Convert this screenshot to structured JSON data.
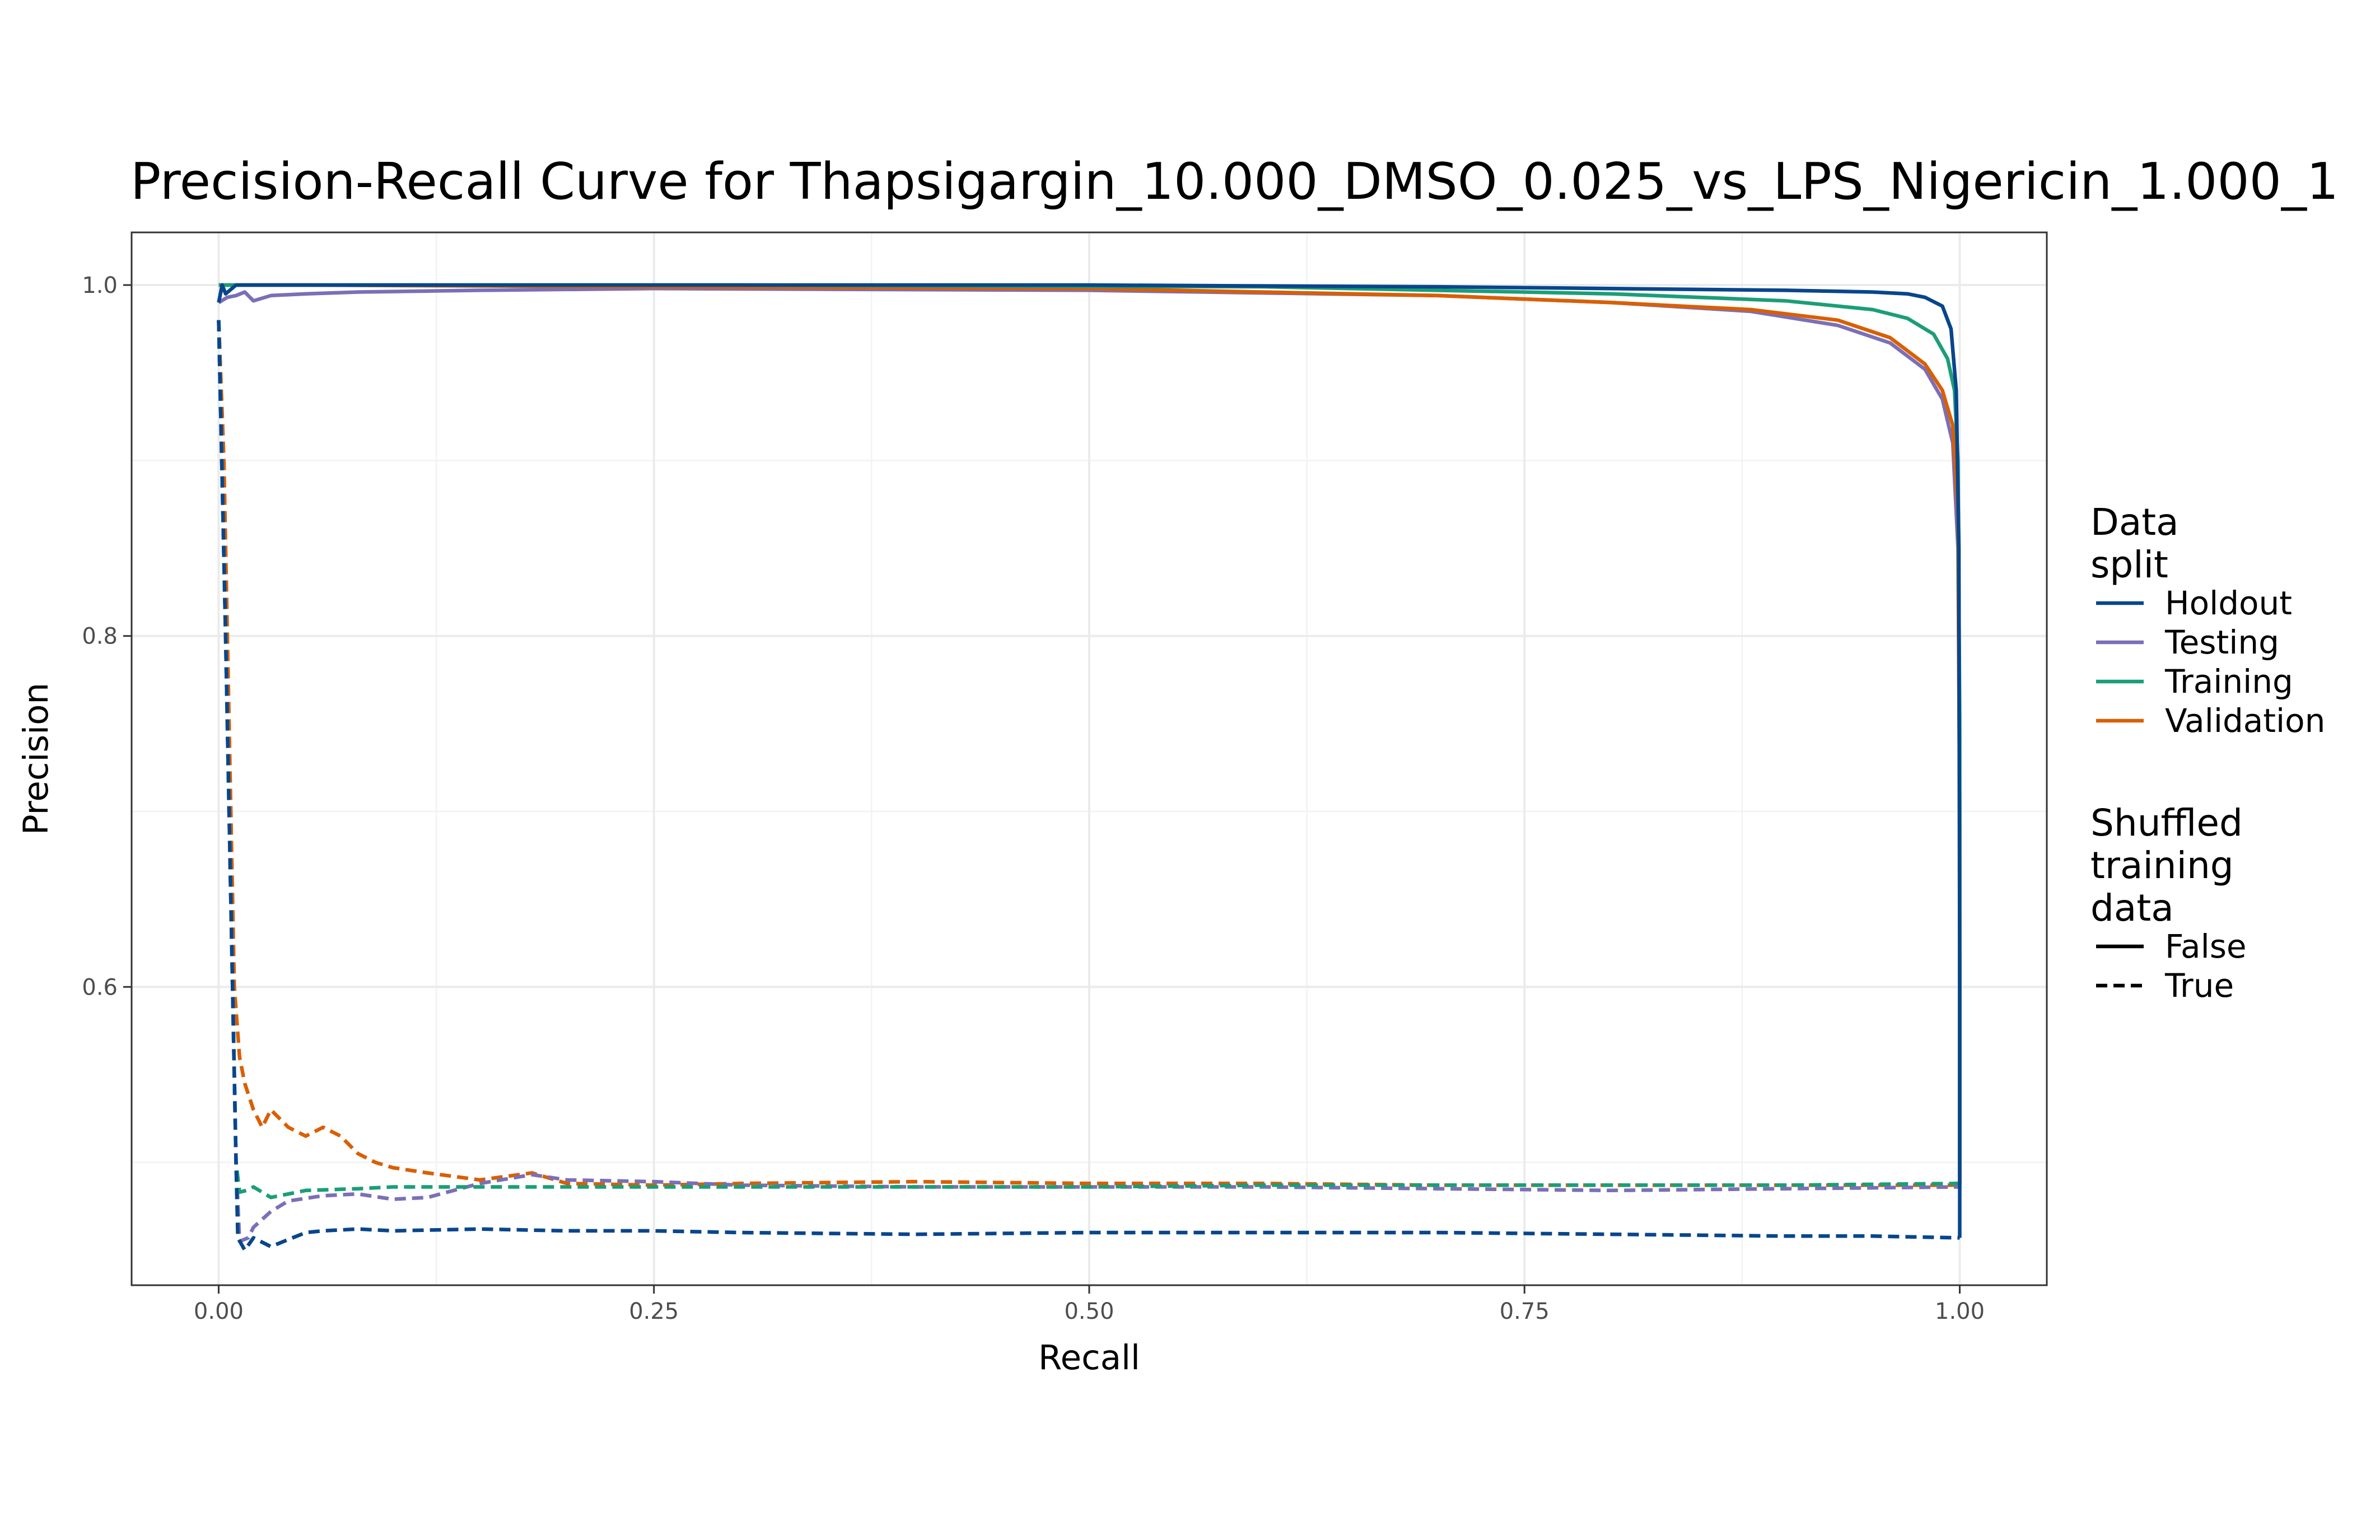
{
  "chart_data": {
    "type": "line",
    "title": "Precision-Recall Curve for Thapsigargin_10.000_DMSO_0.025_vs_LPS_Nigericin_1.000_1",
    "xlabel": "Recall",
    "ylabel": "Precision",
    "xlim": [
      -0.05,
      1.05
    ],
    "ylim": [
      0.43,
      1.03
    ],
    "xticks": [
      0.0,
      0.25,
      0.5,
      0.75,
      1.0
    ],
    "xtick_labels": [
      "0.00",
      "0.25",
      "0.50",
      "0.75",
      "1.00"
    ],
    "yticks": [
      0.6,
      0.8,
      1.0
    ],
    "ytick_labels": [
      "0.6",
      "0.8",
      "1.0"
    ],
    "grid": true,
    "legend_position": "right",
    "legend": {
      "color_title_lines": [
        "Data",
        "split"
      ],
      "color_entries": [
        {
          "label": "Holdout",
          "color": "#08468c"
        },
        {
          "label": "Testing",
          "color": "#7b6fb7"
        },
        {
          "label": "Training",
          "color": "#1b9e77"
        },
        {
          "label": "Validation",
          "color": "#d95f02"
        }
      ],
      "linetype_title_lines": [
        "Shuffled",
        "training",
        "data"
      ],
      "linetype_entries": [
        {
          "label": "False",
          "dash": "solid"
        },
        {
          "label": "True",
          "dash": "dashed"
        }
      ]
    },
    "series": [
      {
        "split": "Holdout",
        "shuffled": "False",
        "color": "#08468c",
        "x": [
          0.0,
          0.002,
          0.004,
          0.01,
          0.05,
          0.2,
          0.5,
          0.7,
          0.9,
          0.95,
          0.97,
          0.98,
          0.99,
          0.995,
          0.998,
          0.9995,
          1.0,
          1.0
        ],
        "y": [
          0.99,
          1.0,
          0.995,
          1.0,
          1.0,
          1.0,
          1.0,
          0.999,
          0.997,
          0.996,
          0.995,
          0.993,
          0.988,
          0.975,
          0.94,
          0.85,
          0.6,
          0.457
        ]
      },
      {
        "split": "Testing",
        "shuffled": "False",
        "color": "#7b6fb7",
        "x": [
          0.0,
          0.005,
          0.01,
          0.015,
          0.02,
          0.03,
          0.05,
          0.08,
          0.15,
          0.25,
          0.5,
          0.7,
          0.8,
          0.88,
          0.93,
          0.96,
          0.98,
          0.99,
          0.996,
          0.999,
          1.0,
          1.0
        ],
        "y": [
          0.99,
          0.993,
          0.994,
          0.996,
          0.991,
          0.994,
          0.995,
          0.996,
          0.997,
          0.998,
          0.997,
          0.994,
          0.99,
          0.985,
          0.977,
          0.967,
          0.952,
          0.935,
          0.91,
          0.85,
          0.7,
          0.486
        ]
      },
      {
        "split": "Training",
        "shuffled": "False",
        "color": "#1b9e77",
        "x": [
          0.0,
          0.05,
          0.3,
          0.6,
          0.8,
          0.9,
          0.95,
          0.97,
          0.985,
          0.993,
          0.997,
          0.999,
          1.0,
          1.0
        ],
        "y": [
          1.0,
          1.0,
          1.0,
          0.999,
          0.995,
          0.991,
          0.986,
          0.981,
          0.972,
          0.958,
          0.94,
          0.9,
          0.75,
          0.488
        ]
      },
      {
        "split": "Validation",
        "shuffled": "False",
        "color": "#d95f02",
        "x": [
          0.0,
          0.05,
          0.25,
          0.5,
          0.7,
          0.8,
          0.88,
          0.93,
          0.96,
          0.98,
          0.99,
          0.996,
          0.999,
          1.0,
          1.0
        ],
        "y": [
          1.0,
          1.0,
          0.999,
          0.998,
          0.994,
          0.99,
          0.986,
          0.98,
          0.97,
          0.955,
          0.94,
          0.92,
          0.87,
          0.7,
          0.488
        ]
      },
      {
        "split": "Holdout",
        "shuffled": "True",
        "color": "#08468c",
        "x": [
          0.0,
          0.004,
          0.008,
          0.01,
          0.011,
          0.015,
          0.02,
          0.03,
          0.04,
          0.05,
          0.06,
          0.08,
          0.1,
          0.15,
          0.2,
          0.25,
          0.3,
          0.4,
          0.5,
          0.6,
          0.7,
          0.8,
          0.9,
          0.95,
          1.0
        ],
        "y": [
          0.98,
          0.8,
          0.6,
          0.5,
          0.457,
          0.45,
          0.457,
          0.452,
          0.456,
          0.46,
          0.461,
          0.462,
          0.461,
          0.462,
          0.461,
          0.461,
          0.46,
          0.459,
          0.46,
          0.46,
          0.46,
          0.459,
          0.458,
          0.458,
          0.457
        ]
      },
      {
        "split": "Testing",
        "shuffled": "True",
        "color": "#7b6fb7",
        "x": [
          0.0,
          0.004,
          0.008,
          0.01,
          0.012,
          0.017,
          0.02,
          0.03,
          0.04,
          0.06,
          0.08,
          0.1,
          0.12,
          0.15,
          0.18,
          0.2,
          0.25,
          0.3,
          0.4,
          0.5,
          0.6,
          0.7,
          0.8,
          0.9,
          1.0
        ],
        "y": [
          0.98,
          0.8,
          0.6,
          0.5,
          0.455,
          0.457,
          0.463,
          0.472,
          0.478,
          0.481,
          0.482,
          0.479,
          0.48,
          0.488,
          0.493,
          0.49,
          0.489,
          0.487,
          0.486,
          0.486,
          0.486,
          0.485,
          0.484,
          0.485,
          0.486
        ]
      },
      {
        "split": "Training",
        "shuffled": "True",
        "color": "#1b9e77",
        "x": [
          0.0,
          0.004,
          0.008,
          0.01,
          0.012,
          0.016,
          0.02,
          0.03,
          0.05,
          0.08,
          0.1,
          0.15,
          0.2,
          0.3,
          0.4,
          0.5,
          0.6,
          0.7,
          0.8,
          0.9,
          1.0
        ],
        "y": [
          0.98,
          0.8,
          0.6,
          0.5,
          0.483,
          0.484,
          0.486,
          0.48,
          0.484,
          0.485,
          0.486,
          0.486,
          0.486,
          0.486,
          0.486,
          0.486,
          0.487,
          0.487,
          0.487,
          0.487,
          0.488
        ]
      },
      {
        "split": "Validation",
        "shuffled": "True",
        "color": "#d95f02",
        "x": [
          0.0,
          0.003,
          0.006,
          0.009,
          0.012,
          0.015,
          0.02,
          0.025,
          0.03,
          0.04,
          0.05,
          0.06,
          0.07,
          0.08,
          0.09,
          0.1,
          0.12,
          0.15,
          0.18,
          0.2,
          0.25,
          0.3,
          0.4,
          0.5,
          0.6,
          0.7,
          0.8,
          0.9,
          1.0
        ],
        "y": [
          0.98,
          0.9,
          0.75,
          0.6,
          0.56,
          0.545,
          0.53,
          0.52,
          0.53,
          0.52,
          0.515,
          0.52,
          0.515,
          0.505,
          0.5,
          0.497,
          0.494,
          0.49,
          0.494,
          0.488,
          0.487,
          0.488,
          0.489,
          0.488,
          0.488,
          0.487,
          0.487,
          0.487,
          0.487
        ]
      }
    ]
  }
}
